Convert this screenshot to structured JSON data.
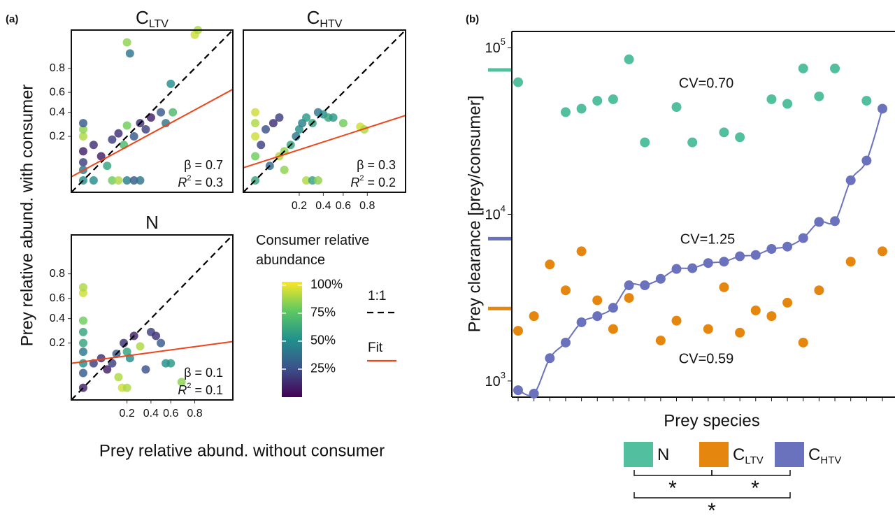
{
  "chart_data": [
    {
      "type": "scatter-grid",
      "panel": "(a)",
      "ylabel": "Prey relative abund. with consumer",
      "xlabel": "Prey relative abund. without consumer",
      "scale": "logit",
      "xlim": [
        0.025,
        0.95
      ],
      "ylim": [
        0.025,
        0.95
      ],
      "xticks": [
        0.2,
        0.4,
        0.6,
        0.8
      ],
      "yticks": [
        0.2,
        0.4,
        0.6,
        0.8
      ],
      "colormap": "viridis",
      "colorbar": {
        "title": "Consumer relative abundance",
        "lim": [
          0,
          103
        ],
        "ticks": [
          {
            "value": 25,
            "label": "25%"
          },
          {
            "value": 50,
            "label": "50%"
          },
          {
            "value": 75,
            "label": "75%"
          },
          {
            "value": 100,
            "label": "100%"
          }
        ]
      },
      "legend": [
        {
          "name": "1:1",
          "color": "#000000",
          "dash": true
        },
        {
          "name": "Fit",
          "color": "#f0441a",
          "dash": false
        }
      ],
      "subplots": [
        {
          "title": "C",
          "sub": "LTV",
          "x": [
            0.04,
            0.04,
            0.04,
            0.04,
            0.04,
            0.04,
            0.04,
            0.06,
            0.08,
            0.1,
            0.12,
            0.15,
            0.2,
            0.25,
            0.3,
            0.12,
            0.15,
            0.2,
            0.2,
            0.22,
            0.25,
            0.3,
            0.35,
            0.4,
            0.5,
            0.55,
            0.6,
            0.62,
            0.8,
            0.82,
            0.06,
            0.18
          ],
          "y": [
            0.04,
            0.08,
            0.12,
            0.2,
            0.25,
            0.3,
            0.06,
            0.15,
            0.1,
            0.07,
            0.04,
            0.04,
            0.04,
            0.04,
            0.04,
            0.18,
            0.22,
            0.28,
            0.92,
            0.88,
            0.2,
            0.3,
            0.25,
            0.35,
            0.4,
            0.3,
            0.68,
            0.4,
            0.94,
            0.95,
            0.04,
            0.15
          ],
          "c": [
            50,
            20,
            10,
            90,
            85,
            30,
            40,
            15,
            10,
            60,
            80,
            90,
            45,
            30,
            40,
            20,
            15,
            80,
            85,
            40,
            30,
            15,
            20,
            10,
            30,
            40,
            50,
            70,
            95,
            90,
            50,
            70
          ],
          "fit": {
            "x": [
              0.025,
              0.95
            ],
            "y": [
              0.046,
              0.63
            ]
          },
          "beta": "β = 0.7",
          "r2": {
            "symbol": "R",
            "sup": "2",
            "text": " = 0.3"
          }
        },
        {
          "title": "C",
          "sub": "HTV",
          "x": [
            0.04,
            0.04,
            0.04,
            0.04,
            0.04,
            0.05,
            0.06,
            0.08,
            0.1,
            0.1,
            0.12,
            0.15,
            0.18,
            0.2,
            0.22,
            0.25,
            0.3,
            0.35,
            0.25,
            0.3,
            0.35,
            0.4,
            0.45,
            0.5,
            0.6,
            0.75,
            0.78,
            0.12,
            0.07
          ],
          "y": [
            0.04,
            0.1,
            0.2,
            0.3,
            0.4,
            0.15,
            0.25,
            0.3,
            0.1,
            0.35,
            0.12,
            0.15,
            0.2,
            0.25,
            0.3,
            0.04,
            0.04,
            0.04,
            0.35,
            0.3,
            0.4,
            0.38,
            0.35,
            0.35,
            0.3,
            0.27,
            0.25,
            0.06,
            0.07
          ],
          "c": [
            60,
            80,
            95,
            90,
            95,
            20,
            25,
            15,
            90,
            20,
            85,
            60,
            40,
            50,
            45,
            90,
            60,
            85,
            55,
            60,
            40,
            50,
            60,
            55,
            80,
            95,
            90,
            85,
            35
          ],
          "fit": {
            "x": [
              0.025,
              0.95
            ],
            "y": [
              0.065,
              0.37
            ]
          },
          "beta": "β = 0.3",
          "r2": {
            "symbol": "R",
            "sup": "2",
            "text": " = 0.2"
          }
        },
        {
          "title": "N",
          "x": [
            0.04,
            0.04,
            0.04,
            0.04,
            0.04,
            0.04,
            0.04,
            0.04,
            0.04,
            0.06,
            0.08,
            0.1,
            0.12,
            0.14,
            0.15,
            0.17,
            0.2,
            0.18,
            0.2,
            0.22,
            0.25,
            0.3,
            0.35,
            0.4,
            0.45,
            0.5,
            0.55,
            0.6,
            0.7
          ],
          "y": [
            0.04,
            0.07,
            0.1,
            0.15,
            0.2,
            0.28,
            0.38,
            0.65,
            0.7,
            0.1,
            0.12,
            0.08,
            0.1,
            0.14,
            0.06,
            0.04,
            0.04,
            0.2,
            0.15,
            0.12,
            0.25,
            0.18,
            0.08,
            0.28,
            0.25,
            0.2,
            0.1,
            0.1,
            0.05
          ],
          "c": [
            10,
            30,
            50,
            40,
            60,
            60,
            80,
            95,
            90,
            20,
            15,
            10,
            20,
            30,
            90,
            95,
            90,
            15,
            60,
            50,
            10,
            90,
            25,
            20,
            15,
            30,
            50,
            55,
            85
          ],
          "fit": {
            "x": [
              0.025,
              0.95
            ],
            "y": [
              0.1,
              0.21
            ]
          },
          "beta": "β = 0.1",
          "r2": {
            "symbol": "R",
            "sup": "2",
            "text": " = 0.1"
          }
        }
      ]
    },
    {
      "type": "scatter",
      "panel": "(b)",
      "ylabel": "Prey clearance [prey/consumer]",
      "xlabel": "Prey species",
      "ylog": true,
      "ylim": [
        800,
        125000
      ],
      "yticks": [
        {
          "value": 1000,
          "label": "10",
          "exp": "3"
        },
        {
          "value": 10000,
          "label": "10",
          "exp": "4"
        },
        {
          "value": 100000,
          "label": "10",
          "exp": "5"
        }
      ],
      "categories": [
        null,
        null,
        null,
        null,
        null,
        null,
        null,
        null,
        null,
        null,
        null,
        null,
        null,
        null,
        null,
        null,
        null,
        null,
        null,
        null,
        null,
        null,
        null,
        null
      ],
      "series": [
        {
          "name": "N",
          "color": "#52bf9e",
          "mean": 73500,
          "values": [
            62000,
            null,
            null,
            41000,
            43000,
            48000,
            49000,
            85000,
            27000,
            null,
            44000,
            27000,
            null,
            31000,
            29000,
            null,
            49000,
            46000,
            75000,
            51000,
            75000,
            null,
            48000,
            null
          ]
        },
        {
          "name": "C",
          "sub": "LTV",
          "color": "#e5870f",
          "mean": 2720,
          "values": [
            2000,
            2450,
            5000,
            3500,
            6000,
            3050,
            2050,
            3150,
            null,
            1750,
            2300,
            null,
            2050,
            3650,
            1950,
            2650,
            2450,
            2950,
            1700,
            3500,
            null,
            5200,
            null,
            6000
          ]
        },
        {
          "name": "C",
          "sub": "HTV",
          "color": "#6b72bd",
          "mean": 7140,
          "fit": true,
          "values": [
            880,
            840,
            1370,
            1700,
            2250,
            2450,
            2750,
            3750,
            3750,
            4100,
            4700,
            4750,
            5100,
            5200,
            5600,
            5700,
            6200,
            6400,
            7200,
            9000,
            9100,
            16000,
            21000,
            43000
          ]
        }
      ],
      "annotations": [
        "CV=0.70",
        "CV=1.25",
        "CV=0.59"
      ],
      "significance": [
        "*",
        "*",
        "*"
      ]
    }
  ]
}
